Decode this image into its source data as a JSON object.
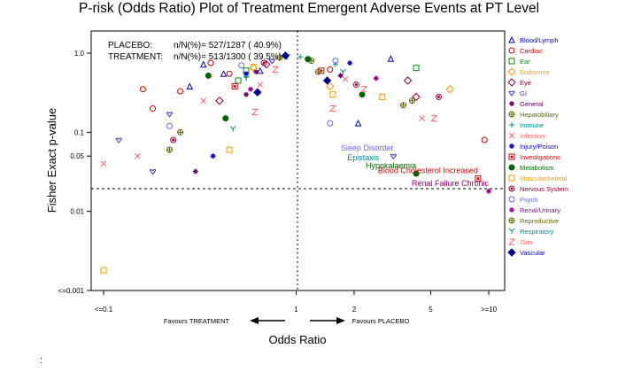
{
  "chart_data": {
    "type": "scatter",
    "title": "P-risk (Odds Ratio) Plot of Treatment Emergent Adverse Events at PT Level",
    "xlabel": "Odds Ratio",
    "ylabel": "Fisher Exact p-value",
    "x_scale": "log",
    "y_scale": "log",
    "xlim": [
      0.1,
      10
    ],
    "ylim": [
      1.0,
      0.001
    ],
    "x_ticks": [
      {
        "value": 0.1,
        "label": "<=0.1"
      },
      {
        "value": 1,
        "label": "1"
      },
      {
        "value": 2,
        "label": "2"
      },
      {
        "value": 5,
        "label": "5"
      },
      {
        "value": 10,
        "label": ">=10"
      }
    ],
    "y_ticks": [
      {
        "value": 0.001,
        "label": "<=0.001"
      },
      {
        "value": 0.01,
        "label": "0.01"
      },
      {
        "value": 0.05,
        "label": "0.05"
      },
      {
        "value": 0.1,
        "label": "0.1"
      },
      {
        "value": 1.0,
        "label": "1.0"
      }
    ],
    "reference_lines": {
      "x": 1,
      "y": 0.05
    },
    "summary": {
      "placebo_label": "PLACEBO:",
      "placebo_value": "n/N(%)= 527/1287 ( 40.9%)",
      "treatment_label": "TREATMENT:",
      "treatment_value": "n/N(%)= 513/1300 ( 39.5%)"
    },
    "favours": {
      "left": "Favours TREATMENT",
      "right": "Favours PLACEBO"
    },
    "legend_position": "right",
    "series": [
      {
        "name": "Blood/Lymph",
        "marker": "triangle",
        "color": "#0000cc",
        "points": [
          [
            0.28,
            0.38
          ],
          [
            0.42,
            0.55
          ],
          [
            0.65,
            0.6
          ],
          [
            3.1,
            0.85
          ],
          [
            0.33,
            0.72
          ],
          [
            2.1,
            0.13
          ]
        ]
      },
      {
        "name": "Cardiac",
        "marker": "circle",
        "color": "#cc0000",
        "points": [
          [
            0.18,
            0.2
          ],
          [
            0.25,
            0.33
          ],
          [
            0.45,
            0.55
          ],
          [
            1.5,
            0.62
          ],
          [
            9.5,
            0.08
          ],
          [
            0.36,
            0.75
          ],
          [
            0.16,
            0.35
          ]
        ]
      },
      {
        "name": "Ear",
        "marker": "square",
        "color": "#008800",
        "points": [
          [
            0.5,
            0.45
          ],
          [
            4.2,
            0.65
          ],
          [
            0.55,
            0.6
          ]
        ]
      },
      {
        "name": "Endocrine",
        "marker": "diamond",
        "color": "#ff9900",
        "points": [
          [
            6.3,
            0.35
          ],
          [
            0.6,
            0.65
          ],
          [
            1.5,
            0.38
          ]
        ]
      },
      {
        "name": "Eye",
        "marker": "diamond",
        "color": "#990033",
        "points": [
          [
            0.4,
            0.25
          ],
          [
            4.2,
            0.28
          ],
          [
            3.8,
            0.45
          ],
          [
            0.7,
            0.72
          ]
        ]
      },
      {
        "name": "GI",
        "marker": "heart",
        "color": "#3333cc",
        "points": [
          [
            0.22,
            0.17
          ],
          [
            0.12,
            0.08
          ],
          [
            0.18,
            0.032
          ],
          [
            3.2,
            0.05
          ],
          [
            0.75,
            0.8
          ]
        ]
      },
      {
        "name": "General",
        "marker": "star",
        "color": "#660066",
        "points": [
          [
            0.3,
            0.032
          ],
          [
            0.55,
            0.3
          ],
          [
            1.7,
            0.52
          ],
          [
            0.62,
            0.58
          ]
        ]
      },
      {
        "name": "Hepatobiliary",
        "marker": "circle-plus",
        "color": "#666600",
        "points": [
          [
            0.25,
            0.1
          ],
          [
            4,
            0.25
          ],
          [
            0.82,
            0.88
          ],
          [
            1.2,
            0.8
          ]
        ]
      },
      {
        "name": "Immune",
        "marker": "plus",
        "color": "#008888",
        "points": [
          [
            0.55,
            0.5
          ],
          [
            1.6,
            0.72
          ],
          [
            1.05,
            0.9
          ]
        ]
      },
      {
        "name": "Infection",
        "marker": "x",
        "color": "#ff6666",
        "points": [
          [
            0.1,
            0.04
          ],
          [
            0.15,
            0.05
          ],
          [
            0.33,
            0.25
          ],
          [
            4.5,
            0.15
          ],
          [
            0.65,
            0.4
          ],
          [
            1.8,
            0.47
          ]
        ]
      },
      {
        "name": "Injury/Poison",
        "marker": "star",
        "color": "#0000cc",
        "points": [
          [
            0.37,
            0.05
          ],
          [
            0.55,
            0.55
          ],
          [
            1.9,
            0.75
          ]
        ]
      },
      {
        "name": "Investigations",
        "marker": "dot-square",
        "color": "#cc0000",
        "points": [
          [
            8.8,
            0.026
          ],
          [
            0.48,
            0.38
          ],
          [
            1.35,
            0.6
          ]
        ]
      },
      {
        "name": "Metabolism",
        "marker": "dot",
        "color": "#006600",
        "points": [
          [
            0.43,
            0.15
          ],
          [
            4.2,
            0.03
          ],
          [
            0.35,
            0.52
          ],
          [
            2.2,
            0.3
          ],
          [
            1.15,
            0.84
          ]
        ]
      },
      {
        "name": "Musculoskeletal",
        "marker": "square",
        "color": "#ff9900",
        "points": [
          [
            0.1,
            0.0018
          ],
          [
            0.45,
            0.06
          ],
          [
            2.8,
            0.28
          ],
          [
            0.6,
            0.67
          ],
          [
            1.55,
            0.3
          ]
        ]
      },
      {
        "name": "Nervous System",
        "marker": "circle-dot",
        "color": "#990033",
        "points": [
          [
            0.23,
            0.08
          ],
          [
            5.5,
            0.28
          ],
          [
            0.68,
            0.75
          ],
          [
            2.05,
            0.4
          ]
        ]
      },
      {
        "name": "Psych",
        "marker": "circle",
        "color": "#6666ff",
        "points": [
          [
            1.5,
            0.13
          ],
          [
            0.52,
            0.7
          ],
          [
            1.6,
            0.8
          ],
          [
            0.22,
            0.12
          ]
        ]
      },
      {
        "name": "Renal/Urinary",
        "marker": "star",
        "color": "#990099",
        "points": [
          [
            10.0,
            0.018
          ],
          [
            0.58,
            0.35
          ],
          [
            2.6,
            0.48
          ]
        ]
      },
      {
        "name": "Reproductive",
        "marker": "circle-plus",
        "color": "#666600",
        "points": [
          [
            0.22,
            0.06
          ],
          [
            3.6,
            0.22
          ],
          [
            1.3,
            0.58
          ]
        ]
      },
      {
        "name": "Respiratory",
        "marker": "y",
        "color": "#008888",
        "points": [
          [
            0.47,
            0.11
          ],
          [
            0.9,
            0.9
          ],
          [
            1.75,
            0.58
          ],
          [
            0.55,
            0.48
          ]
        ]
      },
      {
        "name": "Skin",
        "marker": "z",
        "color": "#ff6666",
        "points": [
          [
            0.61,
            0.18
          ],
          [
            1.55,
            0.2
          ],
          [
            5.2,
            0.15
          ],
          [
            2.25,
            0.35
          ],
          [
            0.78,
            0.62
          ]
        ]
      },
      {
        "name": "Vascular",
        "marker": "diamond-fill",
        "color": "#000099",
        "points": [
          [
            0.63,
            0.32
          ],
          [
            1.45,
            0.45
          ],
          [
            0.88,
            0.93
          ]
        ]
      }
    ],
    "annotations": [
      {
        "text": "Renal Failure Chronic",
        "x": 10.0,
        "y": 0.018,
        "color": "#990066"
      },
      {
        "text": "Blood Cholesterol Increased",
        "x": 8.8,
        "y": 0.026,
        "color": "#cc0000"
      },
      {
        "text": "Hypokalaemia",
        "x": 4.2,
        "y": 0.03,
        "color": "#006600"
      },
      {
        "text": "Epistaxis",
        "x": 2.7,
        "y": 0.038,
        "color": "#008888"
      },
      {
        "text": "Sleep Disorder",
        "x": 3.2,
        "y": 0.05,
        "color": "#6666ff"
      }
    ]
  },
  "footer_mark": ":"
}
